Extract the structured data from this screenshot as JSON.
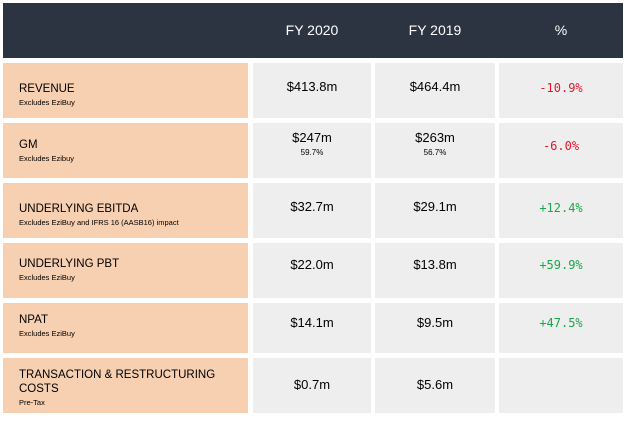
{
  "header": {
    "col1": "FY 2020",
    "col2": "FY 2019",
    "col3": "%"
  },
  "rows": [
    {
      "label": "REVENUE",
      "sub": "Excludes EziBuy",
      "fy2020": "$413.8m",
      "fy2019": "$464.4m",
      "pct": "-10.9%",
      "trend": "negative"
    },
    {
      "label": "GM",
      "sub": "Excludes Ezibuy",
      "fy2020": "$247m",
      "fy2020_sub": "59.7%",
      "fy2019": "$263m",
      "fy2019_sub": "56.7%",
      "pct": "-6.0%",
      "trend": "negative"
    },
    {
      "label": "UNDERLYING EBITDA",
      "sub": "Excludes EziBuy and IFRS 16 (AASB16) impact",
      "fy2020": "$32.7m",
      "fy2019": "$29.1m",
      "pct": "+12.4%",
      "trend": "positive"
    },
    {
      "label": "UNDERLYING PBT",
      "sub": "Excludes EziBuy",
      "fy2020": "$22.0m",
      "fy2019": "$13.8m",
      "pct": "+59.9%",
      "trend": "positive"
    },
    {
      "label": "NPAT",
      "sub": "Excludes EziBuy",
      "fy2020": "$14.1m",
      "fy2019": "$9.5m",
      "pct": "+47.5%",
      "trend": "positive"
    },
    {
      "label_line1": "TRANSACTION & RESTRUCTURING",
      "label_line2": "COSTS",
      "sub": "Pre-Tax",
      "fy2020": "$0.7m",
      "fy2019": "$5.6m"
    }
  ],
  "colors": {
    "header_bg": "#2b3440",
    "label_bg": "#f7cfb1",
    "cell_bg": "#eeeeee",
    "negative": "#e8152a",
    "positive": "#17a84b"
  }
}
